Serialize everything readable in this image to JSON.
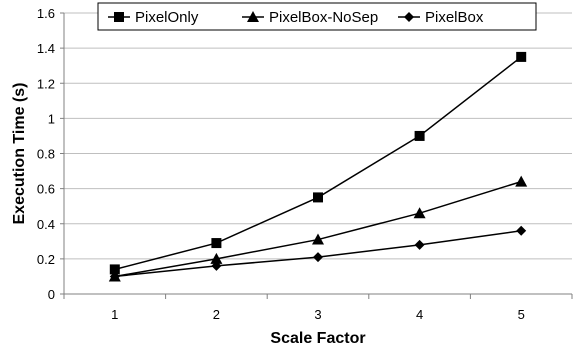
{
  "chart_data": {
    "type": "line",
    "title": "",
    "xlabel": "Scale Factor",
    "ylabel": "Execution Time (s)",
    "x": [
      1,
      2,
      3,
      4,
      5
    ],
    "x_tick_labels": [
      "1",
      "2",
      "3",
      "4",
      "5"
    ],
    "ylim": [
      0,
      1.6
    ],
    "y_ticks": [
      0,
      0.2,
      0.4,
      0.6,
      0.8,
      1,
      1.2,
      1.4,
      1.6
    ],
    "y_tick_labels": [
      "0",
      "0.2",
      "0.4",
      "0.6",
      "0.8",
      "1",
      "1.2",
      "1.4",
      "1.6"
    ],
    "grid": "horizontal",
    "legend_position": "top",
    "series": [
      {
        "name": "PixelOnly",
        "marker": "square",
        "values": [
          0.14,
          0.29,
          0.55,
          0.9,
          1.35
        ]
      },
      {
        "name": "PixelBox-NoSep",
        "marker": "triangle",
        "values": [
          0.1,
          0.2,
          0.31,
          0.46,
          0.64
        ]
      },
      {
        "name": "PixelBox",
        "marker": "diamond",
        "values": [
          0.1,
          0.16,
          0.21,
          0.28,
          0.36
        ]
      }
    ],
    "colors": {
      "line": "#000000",
      "grid": "#bfbfbf",
      "axis": "#808080"
    }
  }
}
